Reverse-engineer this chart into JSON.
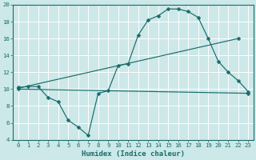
{
  "xlabel": "Humidex (Indice chaleur)",
  "bg_color": "#cce8e8",
  "grid_color": "#ffffff",
  "line_color": "#1a6b6b",
  "line1_x": [
    0,
    1,
    2,
    3,
    4,
    5,
    6,
    7,
    8,
    9,
    10,
    11,
    12,
    13,
    14,
    15,
    16,
    17,
    18,
    19,
    20,
    21,
    22,
    23
  ],
  "line1_y": [
    10.2,
    10.3,
    10.3,
    9.0,
    8.5,
    6.3,
    5.5,
    4.5,
    9.5,
    9.8,
    12.8,
    13.0,
    16.4,
    18.2,
    18.7,
    19.5,
    19.5,
    19.2,
    18.5,
    16.0,
    13.3,
    12.0,
    11.0,
    9.7
  ],
  "line2_x": [
    0,
    22
  ],
  "line2_y": [
    10.1,
    16.0
  ],
  "line3_x": [
    0,
    23
  ],
  "line3_y": [
    10.0,
    9.5
  ],
  "xlim": [
    0,
    23
  ],
  "ylim": [
    4,
    20
  ],
  "xticks": [
    0,
    1,
    2,
    3,
    4,
    5,
    6,
    7,
    8,
    9,
    10,
    11,
    12,
    13,
    14,
    15,
    16,
    17,
    18,
    19,
    20,
    21,
    22,
    23
  ],
  "yticks": [
    4,
    6,
    8,
    10,
    12,
    14,
    16,
    18,
    20
  ],
  "xlabel_fontsize": 6.5,
  "tick_fontsize": 5.2
}
